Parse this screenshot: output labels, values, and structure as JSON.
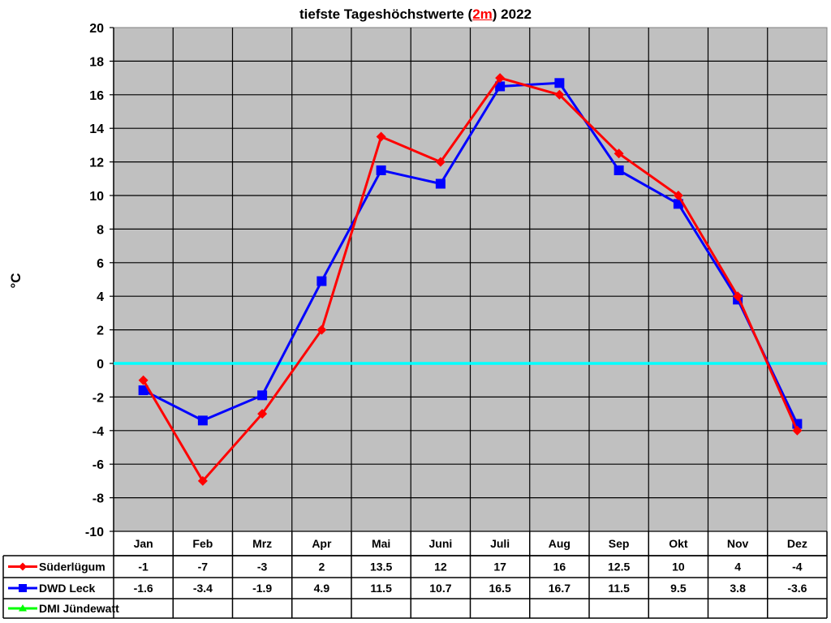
{
  "title": {
    "prefix": "tiefste Tageshöchstwerte (",
    "highlight": "2m",
    "suffix": ") 2022"
  },
  "colors": {
    "plot_background": "#c0c0c0",
    "gridline": "#000000",
    "zero_line": "#00ffff",
    "series_suederluegum": "#ff0000",
    "series_dwd_leck": "#0000ff",
    "series_dmi_juendewatt": "#00ff00"
  },
  "chart_data": {
    "type": "line",
    "title": "tiefste Tageshöchstwerte (2m) 2022",
    "xlabel": "",
    "ylabel": "°C",
    "ylim": [
      -10,
      20
    ],
    "ytick_step": 2,
    "yticks": [
      20,
      18,
      16,
      14,
      12,
      10,
      8,
      6,
      4,
      2,
      0,
      -2,
      -4,
      -6,
      -8,
      -10
    ],
    "grid": true,
    "legend_position": "data-table-left",
    "categories": [
      "Jan",
      "Feb",
      "Mrz",
      "Apr",
      "Mai",
      "Juni",
      "Juli",
      "Aug",
      "Sep",
      "Okt",
      "Nov",
      "Dez"
    ],
    "series": [
      {
        "name": "Süderlügum",
        "color": "#ff0000",
        "marker": "diamond",
        "values": [
          -1,
          -7,
          -3,
          2,
          13.5,
          12,
          17,
          16,
          12.5,
          10,
          4,
          -4
        ],
        "labels": [
          "-1",
          "-7",
          "-3",
          "2",
          "13.5",
          "12",
          "17",
          "16",
          "12.5",
          "10",
          "4",
          "-4"
        ]
      },
      {
        "name": "DWD Leck",
        "color": "#0000ff",
        "marker": "square",
        "values": [
          -1.6,
          -3.4,
          -1.9,
          4.9,
          11.5,
          10.7,
          16.5,
          16.7,
          11.5,
          9.5,
          3.8,
          -3.6
        ],
        "labels": [
          "-1.6",
          "-3.4",
          "-1.9",
          "4.9",
          "11.5",
          "10.7",
          "16.5",
          "16.7",
          "11.5",
          "9.5",
          "3.8",
          "-3.6"
        ]
      },
      {
        "name": "DMI Jündewatt",
        "color": "#00ff00",
        "marker": "triangle",
        "values": [
          null,
          null,
          null,
          null,
          null,
          null,
          null,
          null,
          null,
          null,
          null,
          null
        ],
        "labels": [
          "",
          "",
          "",
          "",
          "",
          "",
          "",
          "",
          "",
          "",
          "",
          ""
        ]
      }
    ],
    "annotations": [
      "zero line highlighted in cyan"
    ]
  }
}
